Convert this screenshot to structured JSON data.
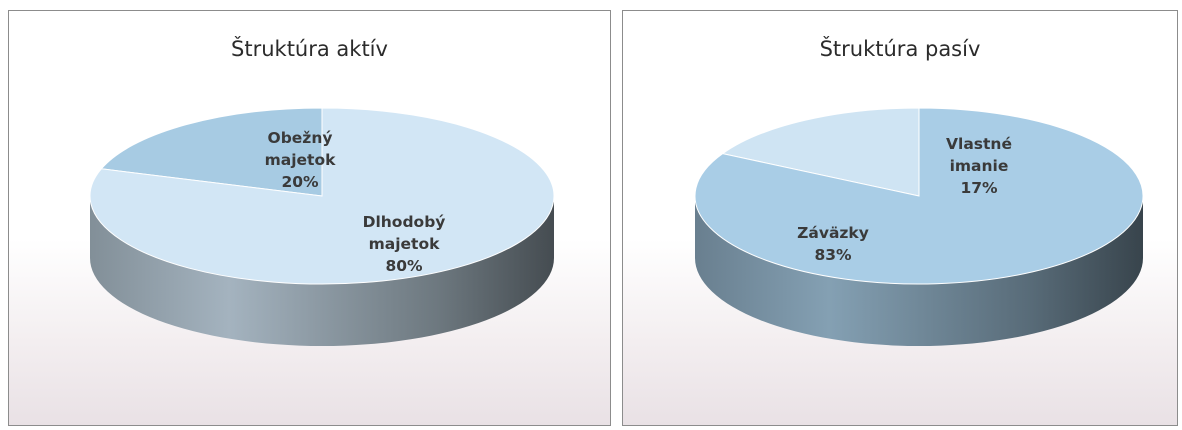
{
  "chart_data": [
    {
      "type": "pie",
      "title": "Štruktúra aktív",
      "categories": [
        "Obežný majetok",
        "Dlhodobý majetok"
      ],
      "values": [
        20,
        80
      ],
      "data_labels": [
        [
          "Obežný",
          "majetok",
          "20%"
        ],
        [
          "Dlhodobý",
          "majetok",
          "80%"
        ]
      ],
      "colors": [
        "#a7cbe3",
        "#d2e6f5"
      ],
      "legend": "none"
    },
    {
      "type": "pie",
      "title": "Štruktúra pasív",
      "categories": [
        "Vlastné imanie",
        "Záväzky"
      ],
      "values": [
        17,
        83
      ],
      "data_labels": [
        [
          "Vlastné",
          "imanie",
          "17%"
        ],
        [
          "Záväzky",
          "83%"
        ]
      ],
      "colors": [
        "#cfe4f3",
        "#a9cde6"
      ],
      "legend": "none"
    }
  ]
}
